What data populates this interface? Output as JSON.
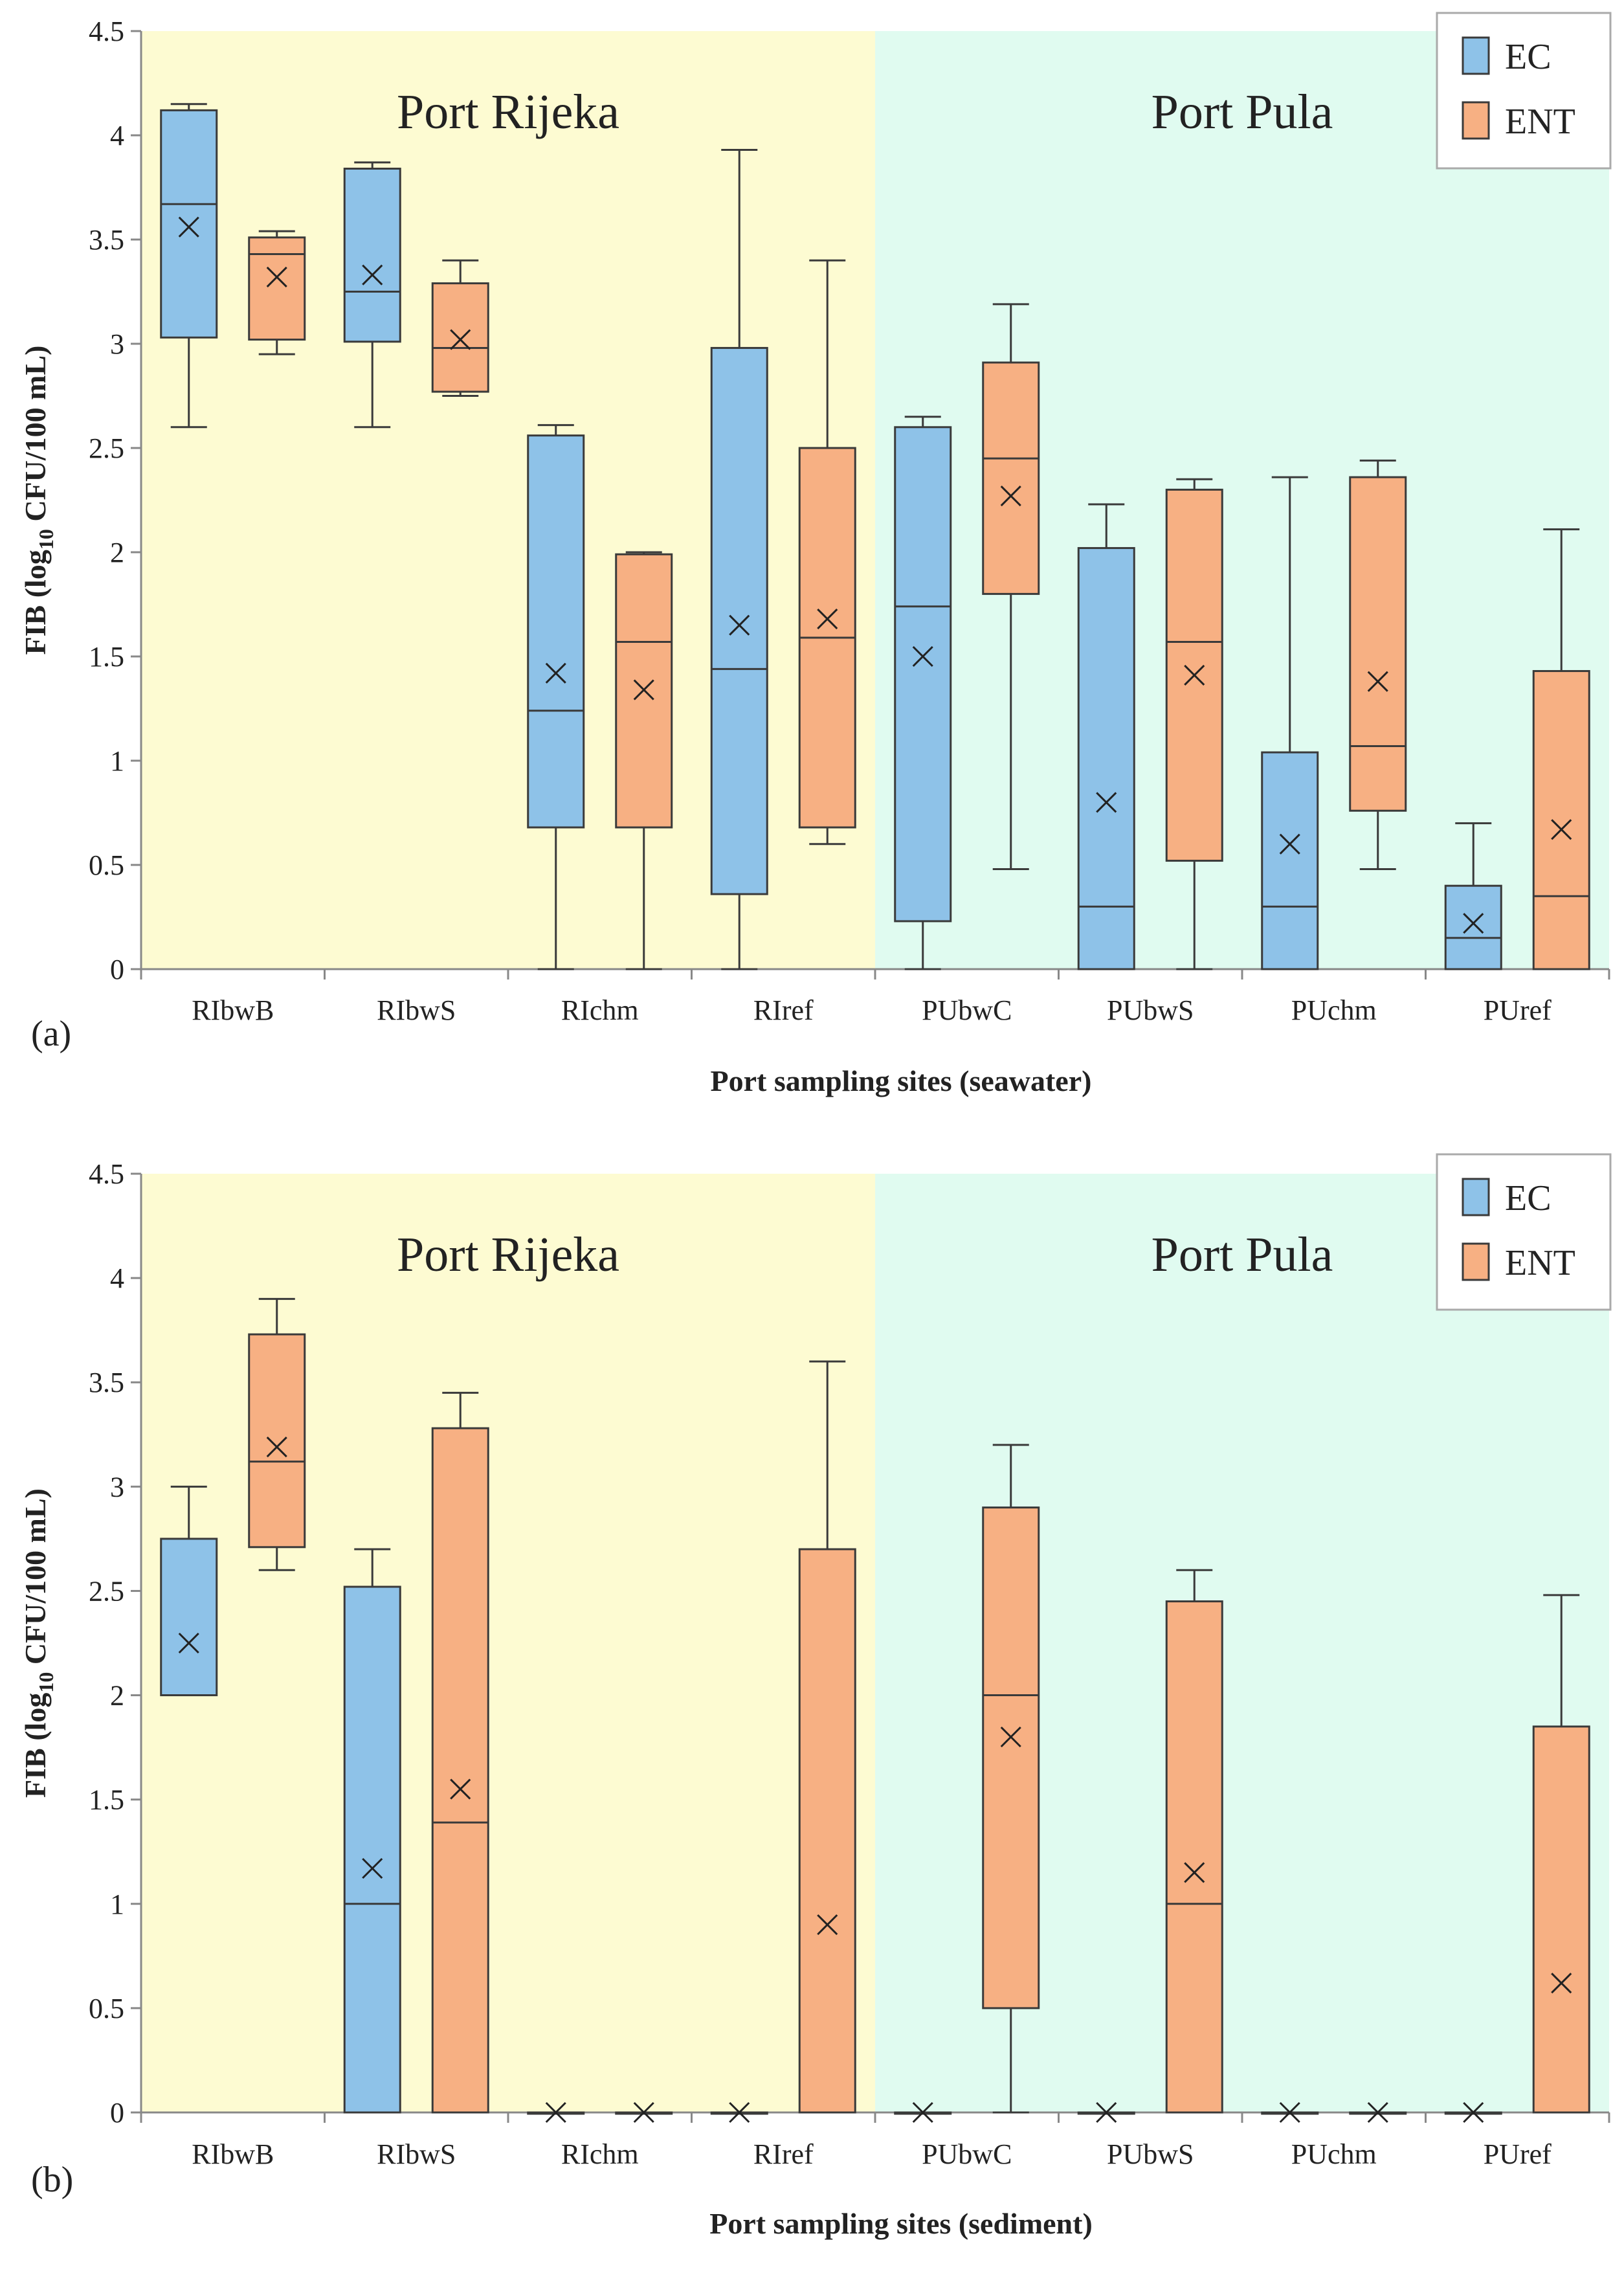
{
  "colors": {
    "ec": "#8ec2e8",
    "ent": "#f7b083",
    "rijeka_bg": "#fdfbd2",
    "pula_bg": "#e0fbf0",
    "stroke": "#3a3a3a"
  },
  "chart_data": [
    {
      "type": "box",
      "panel_label": "(a)",
      "xlabel": "Port sampling sites (seawater)",
      "ylabel": "FIB (log 10 CFU/100 mL)",
      "ylabel_parts": {
        "pre": "FIB (log",
        "sub": "10",
        "post": " CFU/100 mL)"
      },
      "ylim": [
        0,
        4.5
      ],
      "yticks": [
        "0",
        "0.5",
        "1",
        "1.5",
        "2",
        "2.5",
        "3",
        "3.5",
        "4",
        "4.5"
      ],
      "regions": [
        {
          "name": "Port Rijeka",
          "categories": [
            "RIbwB",
            "RIbwS",
            "RIchm",
            "RIref"
          ]
        },
        {
          "name": "Port Pula",
          "categories": [
            "PUbwC",
            "PUbwS",
            "PUchm",
            "PUref"
          ]
        }
      ],
      "categories": [
        "RIbwB",
        "RIbwS",
        "RIchm",
        "RIref",
        "PUbwC",
        "PUbwS",
        "PUchm",
        "PUref"
      ],
      "legend": [
        "EC",
        "ENT"
      ],
      "series": [
        {
          "name": "EC",
          "boxes": [
            {
              "min": 2.6,
              "q1": 3.03,
              "median": 3.67,
              "q3": 4.12,
              "max": 4.15,
              "mean": 3.56
            },
            {
              "min": 2.6,
              "q1": 3.01,
              "median": 3.25,
              "q3": 3.84,
              "max": 3.87,
              "mean": 3.33
            },
            {
              "min": 0.0,
              "q1": 0.68,
              "median": 1.24,
              "q3": 2.56,
              "max": 2.61,
              "mean": 1.42
            },
            {
              "min": 0.0,
              "q1": 0.36,
              "median": 1.44,
              "q3": 2.98,
              "max": 3.93,
              "mean": 1.65
            },
            {
              "min": 0.0,
              "q1": 0.23,
              "median": 1.74,
              "q3": 2.6,
              "max": 2.65,
              "mean": 1.5
            },
            {
              "min": 0.0,
              "q1": 0.0,
              "median": 0.3,
              "q3": 2.02,
              "max": 2.23,
              "mean": 0.8
            },
            {
              "min": 0.0,
              "q1": 0.0,
              "median": 0.3,
              "q3": 1.04,
              "max": 2.36,
              "mean": 0.6
            },
            {
              "min": 0.0,
              "q1": 0.0,
              "median": 0.15,
              "q3": 0.4,
              "max": 0.7,
              "mean": 0.22
            }
          ]
        },
        {
          "name": "ENT",
          "boxes": [
            {
              "min": 2.95,
              "q1": 3.02,
              "median": 3.43,
              "q3": 3.51,
              "max": 3.54,
              "mean": 3.32
            },
            {
              "min": 2.75,
              "q1": 2.77,
              "median": 2.98,
              "q3": 3.29,
              "max": 3.4,
              "mean": 3.02
            },
            {
              "min": 0.0,
              "q1": 0.68,
              "median": 1.57,
              "q3": 1.99,
              "max": 2.0,
              "mean": 1.34
            },
            {
              "min": 0.6,
              "q1": 0.68,
              "median": 1.59,
              "q3": 2.5,
              "max": 3.4,
              "mean": 1.68
            },
            {
              "min": 0.48,
              "q1": 1.8,
              "median": 2.45,
              "q3": 2.91,
              "max": 3.19,
              "mean": 2.27
            },
            {
              "min": 0.0,
              "q1": 0.52,
              "median": 1.57,
              "q3": 2.3,
              "max": 2.35,
              "mean": 1.41
            },
            {
              "min": 0.48,
              "q1": 0.76,
              "median": 1.07,
              "q3": 2.36,
              "max": 2.44,
              "mean": 1.38
            },
            {
              "min": 0.0,
              "q1": 0.0,
              "median": 0.35,
              "q3": 1.43,
              "max": 2.11,
              "mean": 0.67
            }
          ]
        }
      ]
    },
    {
      "type": "box",
      "panel_label": "(b)",
      "xlabel": "Port sampling sites (sediment)",
      "ylabel": "FIB (log 10 CFU/100 mL)",
      "ylabel_parts": {
        "pre": "FIB (log",
        "sub": "10",
        "post": " CFU/100 mL)"
      },
      "ylim": [
        0,
        4.5
      ],
      "yticks": [
        "0",
        "0.5",
        "1",
        "1.5",
        "2",
        "2.5",
        "3",
        "3.5",
        "4",
        "4.5"
      ],
      "regions": [
        {
          "name": "Port Rijeka",
          "categories": [
            "RIbwB",
            "RIbwS",
            "RIchm",
            "RIref"
          ]
        },
        {
          "name": "Port Pula",
          "categories": [
            "PUbwC",
            "PUbwS",
            "PUchm",
            "PUref"
          ]
        }
      ],
      "categories": [
        "RIbwB",
        "RIbwS",
        "RIchm",
        "RIref",
        "PUbwC",
        "PUbwS",
        "PUchm",
        "PUref"
      ],
      "legend": [
        "EC",
        "ENT"
      ],
      "series": [
        {
          "name": "EC",
          "boxes": [
            {
              "min": 2.0,
              "q1": 2.0,
              "median": 2.0,
              "q3": 2.75,
              "max": 3.0,
              "mean": 2.25
            },
            {
              "min": 0.0,
              "q1": 0.0,
              "median": 1.0,
              "q3": 2.52,
              "max": 2.7,
              "mean": 1.17
            },
            {
              "min": 0.0,
              "q1": 0.0,
              "median": 0.0,
              "q3": 0.0,
              "max": 0.0,
              "mean": 0.0
            },
            {
              "min": 0.0,
              "q1": 0.0,
              "median": 0.0,
              "q3": 0.0,
              "max": 0.0,
              "mean": 0.0
            },
            {
              "min": 0.0,
              "q1": 0.0,
              "median": 0.0,
              "q3": 0.0,
              "max": 0.0,
              "mean": 0.0
            },
            {
              "min": 0.0,
              "q1": 0.0,
              "median": 0.0,
              "q3": 0.0,
              "max": 0.0,
              "mean": 0.0
            },
            {
              "min": 0.0,
              "q1": 0.0,
              "median": 0.0,
              "q3": 0.0,
              "max": 0.0,
              "mean": 0.0
            },
            {
              "min": 0.0,
              "q1": 0.0,
              "median": 0.0,
              "q3": 0.0,
              "max": 0.0,
              "mean": 0.0
            }
          ]
        },
        {
          "name": "ENT",
          "boxes": [
            {
              "min": 2.6,
              "q1": 2.71,
              "median": 3.12,
              "q3": 3.73,
              "max": 3.9,
              "mean": 3.19
            },
            {
              "min": 0.0,
              "q1": 0.0,
              "median": 1.39,
              "q3": 3.28,
              "max": 3.45,
              "mean": 1.55
            },
            {
              "min": 0.0,
              "q1": 0.0,
              "median": 0.0,
              "q3": 0.0,
              "max": 0.0,
              "mean": 0.0
            },
            {
              "min": 0.0,
              "q1": 0.0,
              "median": 0.0,
              "q3": 2.7,
              "max": 3.6,
              "mean": 0.9
            },
            {
              "min": 0.0,
              "q1": 0.5,
              "median": 2.0,
              "q3": 2.9,
              "max": 3.2,
              "mean": 1.8
            },
            {
              "min": 0.0,
              "q1": 0.0,
              "median": 1.0,
              "q3": 2.45,
              "max": 2.6,
              "mean": 1.15
            },
            {
              "min": 0.0,
              "q1": 0.0,
              "median": 0.0,
              "q3": 0.0,
              "max": 0.0,
              "mean": 0.0
            },
            {
              "min": 0.0,
              "q1": 0.0,
              "median": 0.0,
              "q3": 1.85,
              "max": 2.48,
              "mean": 0.62
            }
          ]
        }
      ]
    }
  ]
}
